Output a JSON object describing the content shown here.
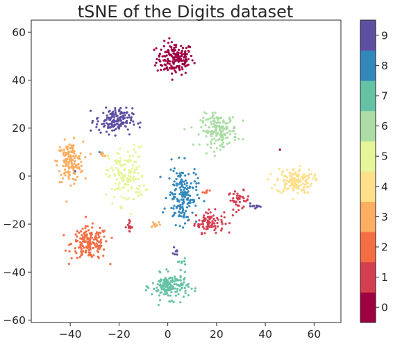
{
  "chart_data": {
    "type": "scatter",
    "title": "tSNE of the Digits dataset",
    "xlabel": "",
    "ylabel": "",
    "xlim": [
      -56,
      71
    ],
    "ylim": [
      -61,
      65
    ],
    "xticks": [
      -40,
      -20,
      0,
      20,
      40,
      60
    ],
    "yticks": [
      -60,
      -40,
      -20,
      0,
      20,
      40,
      60
    ],
    "xtick_labels": [
      "−40",
      "−20",
      "0",
      "20",
      "40",
      "60"
    ],
    "ytick_labels": [
      "−60",
      "−40",
      "−20",
      "0",
      "20",
      "40",
      "60"
    ],
    "grid": false,
    "colorbar": {
      "labels": [
        "0",
        "1",
        "2",
        "3",
        "4",
        "5",
        "6",
        "7",
        "8",
        "9"
      ],
      "colormap": "Spectral",
      "colors": [
        "#9e0142",
        "#d53e4f",
        "#f46d43",
        "#fdae61",
        "#fee08b",
        "#e6f598",
        "#abdda4",
        "#66c2a5",
        "#3288bd",
        "#5e4fa2"
      ]
    },
    "clusters": [
      {
        "label": "0",
        "center": [
          3,
          49
        ],
        "spread": [
          5,
          4.5
        ],
        "count": 170
      },
      {
        "label": "1",
        "center": [
          17,
          -19
        ],
        "spread": [
          4,
          3
        ],
        "count": 90
      },
      {
        "label": "1",
        "center": [
          29,
          -10
        ],
        "spread": [
          3,
          2.5
        ],
        "count": 40
      },
      {
        "label": "1",
        "center": [
          -16,
          -21
        ],
        "spread": [
          1,
          1.5
        ],
        "count": 14
      },
      {
        "label": "2",
        "center": [
          -32,
          -28
        ],
        "spread": [
          5,
          4.5
        ],
        "count": 170
      },
      {
        "label": "2",
        "center": [
          16,
          -6.5
        ],
        "spread": [
          1.2,
          0.5
        ],
        "count": 6
      },
      {
        "label": "3",
        "center": [
          -40,
          6
        ],
        "spread": [
          3.5,
          5.5
        ],
        "count": 150
      },
      {
        "label": "3",
        "center": [
          -27,
          9
        ],
        "spread": [
          0.8,
          1.3
        ],
        "count": 7
      },
      {
        "label": "3",
        "center": [
          -5,
          -20
        ],
        "spread": [
          1.5,
          1
        ],
        "count": 10
      },
      {
        "label": "4",
        "center": [
          52,
          -2
        ],
        "spread": [
          5,
          3.5
        ],
        "count": 150
      },
      {
        "label": "5",
        "center": [
          -17,
          0
        ],
        "spread": [
          5,
          8
        ],
        "count": 150
      },
      {
        "label": "6",
        "center": [
          21,
          19
        ],
        "spread": [
          5,
          4.5
        ],
        "count": 170
      },
      {
        "label": "7",
        "center": [
          1,
          -46
        ],
        "spread": [
          5,
          3.5
        ],
        "count": 160
      },
      {
        "label": "7",
        "center": [
          6,
          -36
        ],
        "spread": [
          1.5,
          0.8
        ],
        "count": 8
      },
      {
        "label": "8",
        "center": [
          6,
          -8
        ],
        "spread": [
          4,
          8
        ],
        "count": 170
      },
      {
        "label": "9",
        "center": [
          -22,
          23
        ],
        "spread": [
          5,
          3.5
        ],
        "count": 150
      },
      {
        "label": "9",
        "center": [
          36,
          -12.5
        ],
        "spread": [
          1.2,
          0.8
        ],
        "count": 12
      },
      {
        "label": "9",
        "center": [
          3,
          -31
        ],
        "spread": [
          0.8,
          1.2
        ],
        "count": 8
      }
    ],
    "outliers": [
      {
        "label": "0",
        "point": [
          46,
          11
        ]
      },
      {
        "label": "9",
        "point": [
          -38,
          2
        ]
      },
      {
        "label": "8",
        "point": [
          -28,
          10
        ]
      }
    ]
  }
}
